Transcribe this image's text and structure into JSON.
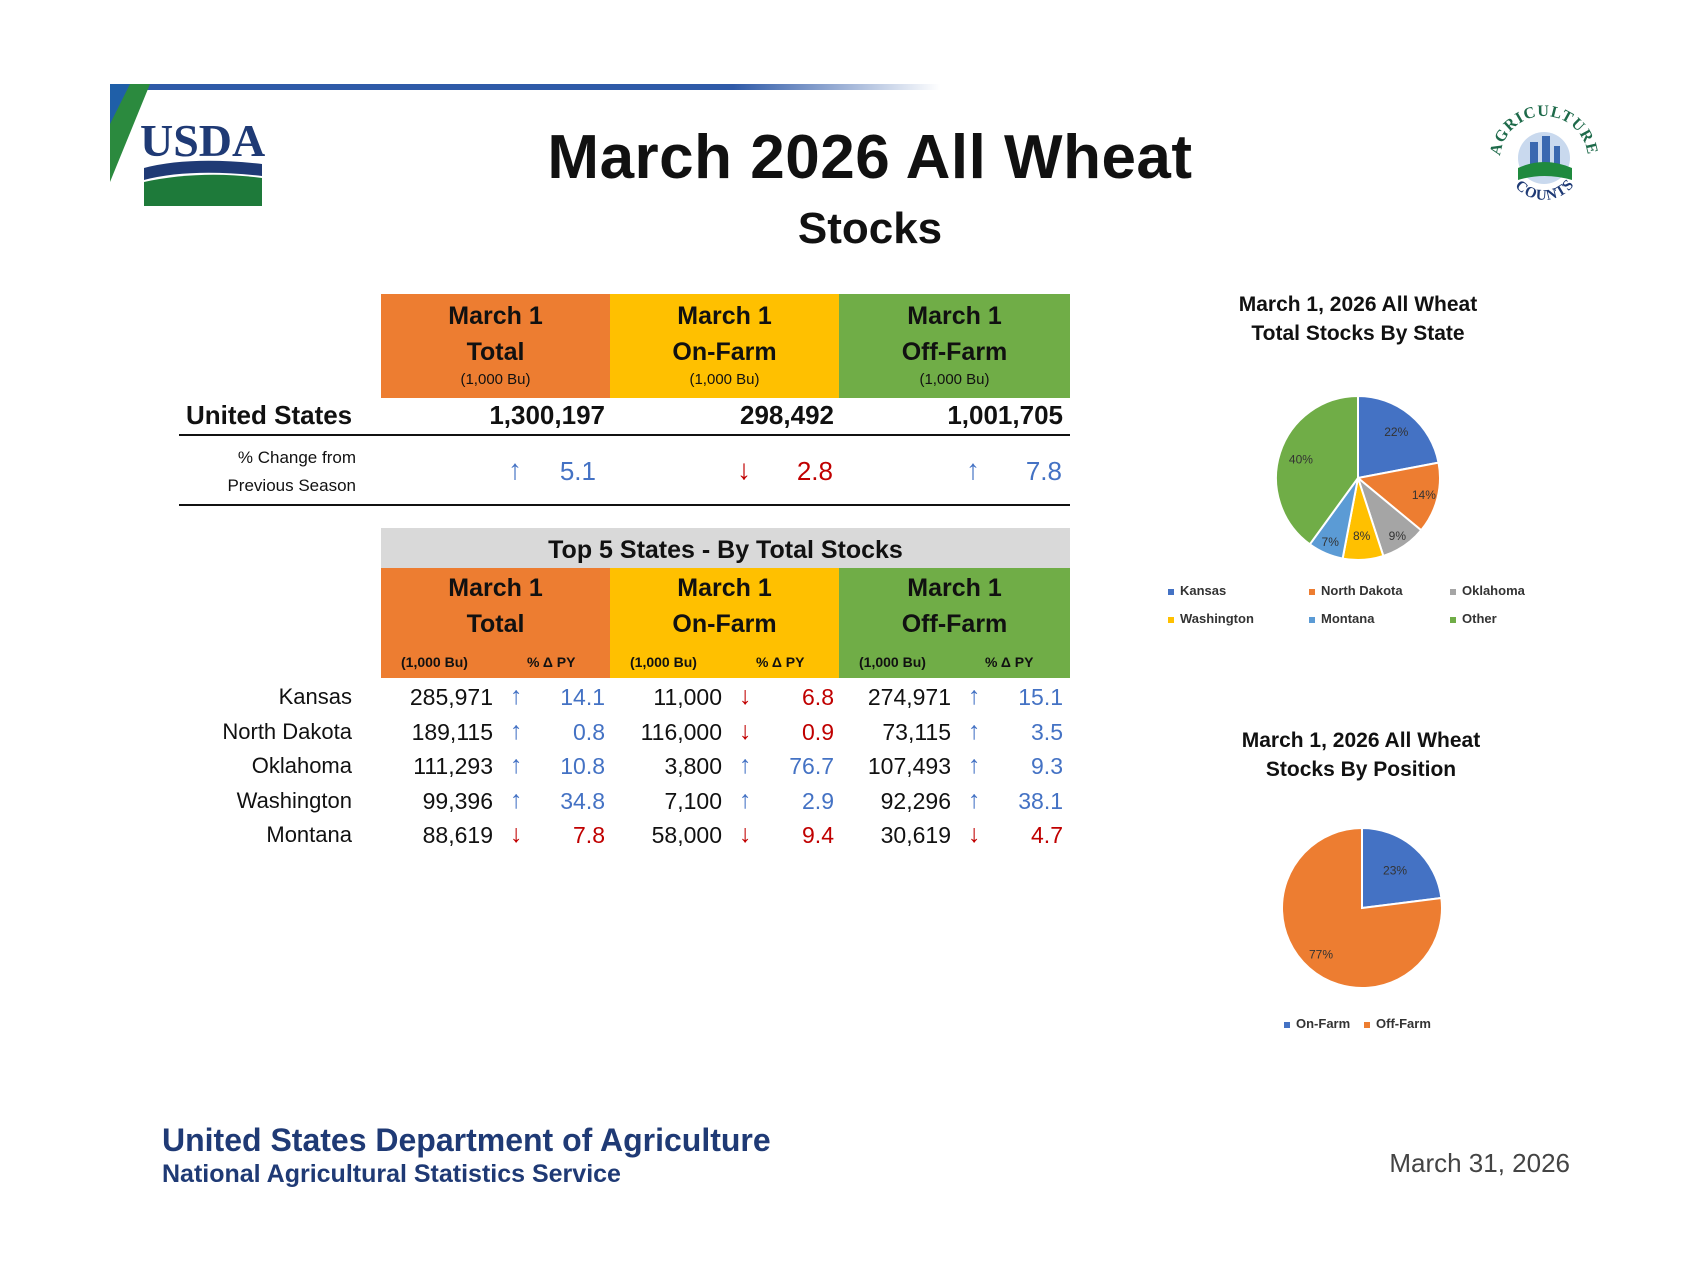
{
  "header": {
    "title": "March 2026 All Wheat",
    "subtitle": "Stocks",
    "usda_logo_text": "USDA",
    "ag_logo_text_top": "AGRICULTURE",
    "ag_logo_text_bottom": "COUNTS"
  },
  "colors": {
    "total": "#ed7d31",
    "onfarm": "#ffc000",
    "offfarm": "#70ad47",
    "up": "#4472c4",
    "down": "#c00000",
    "navy": "#1f3a75"
  },
  "columns": [
    {
      "line1": "March 1",
      "line2": "Total",
      "unit": "(1,000 Bu)"
    },
    {
      "line1": "March 1",
      "line2": "On-Farm",
      "unit": "(1,000 Bu)"
    },
    {
      "line1": "March 1",
      "line2": "Off-Farm",
      "unit": "(1,000 Bu)"
    }
  ],
  "us": {
    "label": "United States",
    "values": [
      "1,300,197",
      "298,492",
      "1,001,705"
    ],
    "pct_label_line1": "% Change from",
    "pct_label_line2": "Previous Season",
    "pct": [
      {
        "dir": "up",
        "arrow": "↑",
        "value": "5.1"
      },
      {
        "dir": "down",
        "arrow": "↓",
        "value": "2.8"
      },
      {
        "dir": "up",
        "arrow": "↑",
        "value": "7.8"
      }
    ]
  },
  "top5": {
    "title": "Top 5 States - By Total Stocks",
    "sub_unit": "(1,000 Bu)",
    "sub_pct": "% Δ PY",
    "rows": [
      {
        "state": "Kansas",
        "cells": [
          {
            "value": "285,971",
            "dir": "up",
            "arrow": "↑",
            "pct": "14.1"
          },
          {
            "value": "11,000",
            "dir": "down",
            "arrow": "↓",
            "pct": "6.8"
          },
          {
            "value": "274,971",
            "dir": "up",
            "arrow": "↑",
            "pct": "15.1"
          }
        ]
      },
      {
        "state": "North Dakota",
        "cells": [
          {
            "value": "189,115",
            "dir": "up",
            "arrow": "↑",
            "pct": "0.8"
          },
          {
            "value": "116,000",
            "dir": "down",
            "arrow": "↓",
            "pct": "0.9"
          },
          {
            "value": "73,115",
            "dir": "up",
            "arrow": "↑",
            "pct": "3.5"
          }
        ]
      },
      {
        "state": "Oklahoma",
        "cells": [
          {
            "value": "111,293",
            "dir": "up",
            "arrow": "↑",
            "pct": "10.8"
          },
          {
            "value": "3,800",
            "dir": "up",
            "arrow": "↑",
            "pct": "76.7"
          },
          {
            "value": "107,493",
            "dir": "up",
            "arrow": "↑",
            "pct": "9.3"
          }
        ]
      },
      {
        "state": "Washington",
        "cells": [
          {
            "value": "99,396",
            "dir": "up",
            "arrow": "↑",
            "pct": "34.8"
          },
          {
            "value": "7,100",
            "dir": "up",
            "arrow": "↑",
            "pct": "2.9"
          },
          {
            "value": "92,296",
            "dir": "up",
            "arrow": "↑",
            "pct": "38.1"
          }
        ]
      },
      {
        "state": "Montana",
        "cells": [
          {
            "value": "88,619",
            "dir": "down",
            "arrow": "↓",
            "pct": "7.8"
          },
          {
            "value": "58,000",
            "dir": "down",
            "arrow": "↓",
            "pct": "9.4"
          },
          {
            "value": "30,619",
            "dir": "down",
            "arrow": "↓",
            "pct": "4.7"
          }
        ]
      }
    ]
  },
  "chart_data": [
    {
      "type": "pie",
      "title_line1": "March 1, 2026 All Wheat",
      "title_line2": "Total Stocks By State",
      "categories": [
        "Kansas",
        "North Dakota",
        "Oklahoma",
        "Washington",
        "Montana",
        "Other"
      ],
      "values": [
        22,
        14,
        9,
        8,
        7,
        40
      ],
      "labels": [
        "22%",
        "14%",
        "9%",
        "8%",
        "7%",
        "40%"
      ],
      "colors": [
        "#4472c4",
        "#ed7d31",
        "#a5a5a5",
        "#ffc000",
        "#5b9bd5",
        "#70ad47"
      ],
      "legend_position": "bottom"
    },
    {
      "type": "pie",
      "title_line1": "March 1, 2026 All Wheat",
      "title_line2": "Stocks By Position",
      "categories": [
        "On-Farm",
        "Off-Farm"
      ],
      "values": [
        23,
        77
      ],
      "labels": [
        "23%",
        "77%"
      ],
      "colors": [
        "#4472c4",
        "#ed7d31"
      ],
      "legend_position": "bottom"
    }
  ],
  "footer": {
    "dept": "United States Department of Agriculture",
    "service": "National Agricultural Statistics Service",
    "date": "March 31, 2026"
  }
}
